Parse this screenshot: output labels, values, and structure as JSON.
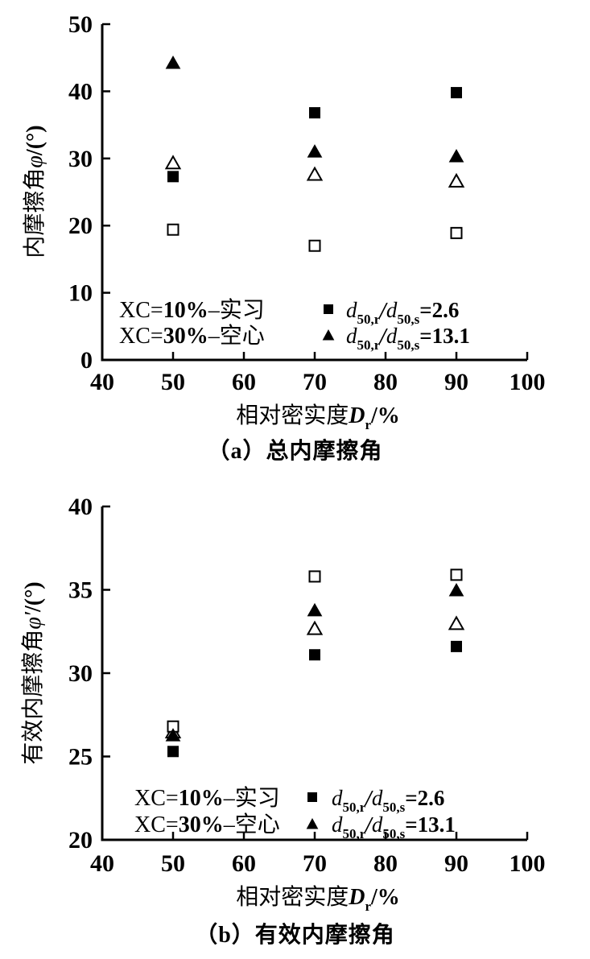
{
  "page": {
    "background": "#ffffff",
    "ink_color": "#000000"
  },
  "chart_data": [
    {
      "type": "scatter",
      "caption": "（a）总内摩擦角",
      "xlabel": "相对密实度Dr/%",
      "ylabel": "内摩擦角φ/(°)",
      "xlabel_parts": [
        {
          "t": "相对密实度"
        },
        {
          "t": "D",
          "style": "var bold"
        },
        {
          "t": "r",
          "style": "sub"
        },
        {
          "t": "/%",
          "style": "bold"
        }
      ],
      "ylabel_parts": [
        {
          "t": "内摩擦角"
        },
        {
          "t": "φ",
          "style": "var"
        },
        {
          "t": "/(°)",
          "style": "bold"
        }
      ],
      "xlim": [
        40,
        100
      ],
      "ylim": [
        0,
        50
      ],
      "xticks": [
        40,
        50,
        60,
        70,
        80,
        90,
        100
      ],
      "yticks": [
        0,
        10,
        20,
        30,
        40,
        50
      ],
      "grid": false,
      "x": [
        50,
        70,
        90
      ],
      "series": [
        {
          "name": "XC=10% solid, d50,r/d50,s=2.6",
          "marker": "filled-square",
          "values": [
            27.3,
            36.8,
            39.8
          ]
        },
        {
          "name": "XC=10% solid, d50,r/d50,s=13.1",
          "marker": "filled-triangle",
          "values": [
            44.3,
            31.1,
            30.4
          ]
        },
        {
          "name": "XC=30% hollow, d50,r/d50,s=2.6",
          "marker": "open-square",
          "values": [
            19.4,
            17.0,
            18.9
          ]
        },
        {
          "name": "XC=30% hollow, d50,r/d50,s=13.1",
          "marker": "open-triangle",
          "values": [
            29.4,
            27.7,
            26.7
          ]
        }
      ],
      "legend": {
        "position": "inside-bottom-left",
        "left_lines": [
          [
            {
              "t": "XC="
            },
            {
              "t": "10%",
              "style": "bold"
            },
            {
              "t": "–实习"
            }
          ],
          [
            {
              "t": "XC="
            },
            {
              "t": "30%",
              "style": "bold"
            },
            {
              "t": "–空心"
            }
          ]
        ],
        "items": [
          {
            "marker": "filled-square",
            "label": "d50,r/d50,s=2.6",
            "parts": [
              {
                "t": "d",
                "style": "var"
              },
              {
                "t": "50,r",
                "style": "sub"
              },
              {
                "t": "/",
                "style": "var bold"
              },
              {
                "t": "d",
                "style": "var"
              },
              {
                "t": "50,s",
                "style": "sub"
              },
              {
                "t": "=2.6",
                "style": "bold"
              }
            ]
          },
          {
            "marker": "filled-triangle",
            "label": "d50,r/d50,s=13.1",
            "parts": [
              {
                "t": "d",
                "style": "var"
              },
              {
                "t": "50,r",
                "style": "sub"
              },
              {
                "t": "/",
                "style": "var bold"
              },
              {
                "t": "d",
                "style": "var"
              },
              {
                "t": "50,s",
                "style": "sub"
              },
              {
                "t": "=13.1",
                "style": "bold"
              }
            ]
          }
        ]
      }
    },
    {
      "type": "scatter",
      "caption": "（b）有效内摩擦角",
      "xlabel": "相对密实度Dr/%",
      "ylabel": "有效内摩擦角φ′/(°)",
      "xlabel_parts": [
        {
          "t": "相对密实度"
        },
        {
          "t": "D",
          "style": "var bold"
        },
        {
          "t": "r",
          "style": "sub"
        },
        {
          "t": "/%",
          "style": "bold"
        }
      ],
      "ylabel_parts": [
        {
          "t": "有效内摩擦角"
        },
        {
          "t": "φ′",
          "style": "var"
        },
        {
          "t": "/(°)",
          "style": "bold"
        }
      ],
      "xlim": [
        40,
        100
      ],
      "ylim": [
        20,
        40
      ],
      "xticks": [
        40,
        50,
        60,
        70,
        80,
        90,
        100
      ],
      "yticks": [
        20,
        25,
        30,
        35,
        40
      ],
      "grid": false,
      "x": [
        50,
        70,
        90
      ],
      "series": [
        {
          "name": "XC=10% solid, d50,r/d50,s=2.6",
          "marker": "filled-square",
          "values": [
            25.3,
            31.1,
            31.6
          ]
        },
        {
          "name": "XC=10% solid, d50,r/d50,s=13.1",
          "marker": "filled-triangle",
          "values": [
            26.3,
            33.8,
            35.0
          ]
        },
        {
          "name": "XC=30% hollow, d50,r/d50,s=2.6",
          "marker": "open-square",
          "values": [
            26.8,
            35.8,
            35.9
          ]
        },
        {
          "name": "XC=30% hollow, d50,r/d50,s=13.1",
          "marker": "open-triangle",
          "values": [
            26.5,
            32.7,
            33.0
          ]
        }
      ],
      "legend": {
        "position": "inside-bottom-left",
        "left_lines": [
          [
            {
              "t": "XC="
            },
            {
              "t": "10%",
              "style": "bold"
            },
            {
              "t": "–实习"
            }
          ],
          [
            {
              "t": "XC="
            },
            {
              "t": "30%",
              "style": "bold"
            },
            {
              "t": "–空心"
            }
          ]
        ],
        "items": [
          {
            "marker": "filled-square",
            "label": "d50,r/d50,s=2.6",
            "parts": [
              {
                "t": "d",
                "style": "var"
              },
              {
                "t": "50,r",
                "style": "sub"
              },
              {
                "t": "/",
                "style": "var bold"
              },
              {
                "t": "d",
                "style": "var"
              },
              {
                "t": "50,s",
                "style": "sub"
              },
              {
                "t": "=2.6",
                "style": "bold"
              }
            ]
          },
          {
            "marker": "filled-triangle",
            "label": "d50,r/d50,s=13.1",
            "parts": [
              {
                "t": "d",
                "style": "var"
              },
              {
                "t": "50,r",
                "style": "sub"
              },
              {
                "t": "/",
                "style": "var bold"
              },
              {
                "t": "d",
                "style": "var"
              },
              {
                "t": "50,s",
                "style": "sub"
              },
              {
                "t": "=13.1",
                "style": "bold"
              }
            ]
          }
        ]
      }
    }
  ]
}
